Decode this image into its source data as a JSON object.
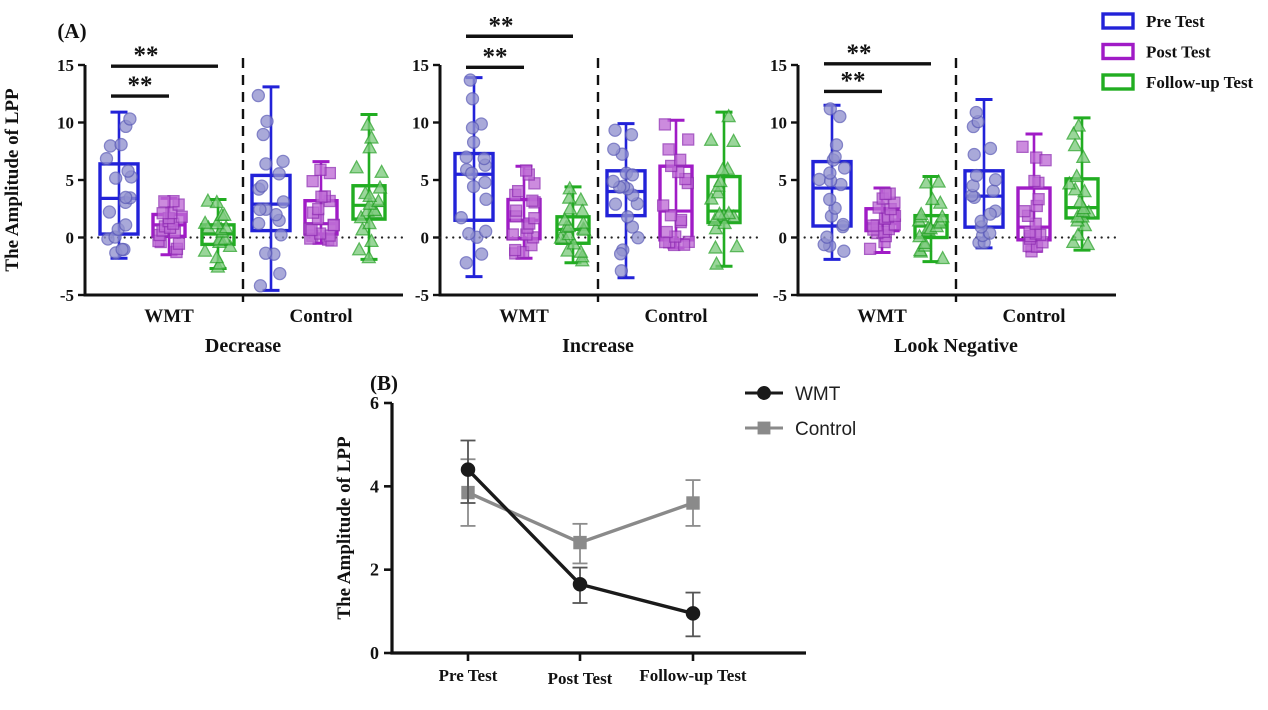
{
  "figure": {
    "background": "#ffffff",
    "axis_color": "#111111",
    "points_per_box": 19
  },
  "chart_data": [
    {
      "type": "boxplot-panels",
      "panel_label": "(A)",
      "ylabel": "The Amplitude of LPP",
      "ylim": [
        -5,
        15
      ],
      "yticks": [
        -5,
        0,
        5,
        10,
        15
      ],
      "zero_reference_line": 0,
      "grid": false,
      "groups": [
        "WMT",
        "Control"
      ],
      "legend_position": "top-right",
      "legend": [
        {
          "label": "Pre Test",
          "color": "#2222D8",
          "marker": "circle",
          "point_fill": "#9292CF",
          "point_stroke": "#5E5EB8"
        },
        {
          "label": "Post Test",
          "color": "#A01BC6",
          "marker": "square",
          "point_fill": "#BE6BD6",
          "point_stroke": "#9230B5"
        },
        {
          "label": "Follow-up Test",
          "color": "#21AD21",
          "marker": "triangle",
          "point_fill": "#7ECB7E",
          "point_stroke": "#2BA42B"
        }
      ],
      "panels": [
        {
          "title": "Decrease",
          "boxes": [
            {
              "group": "WMT",
              "test": "Pre Test",
              "lo": -1.8,
              "q1": 0.3,
              "med": 3.4,
              "q3": 6.4,
              "hi": 10.9
            },
            {
              "group": "WMT",
              "test": "Post Test",
              "lo": -1.5,
              "q1": 0.1,
              "med": 1.1,
              "q3": 2.0,
              "hi": 3.4
            },
            {
              "group": "WMT",
              "test": "Follow-up Test",
              "lo": -2.7,
              "q1": -0.6,
              "med": 0.3,
              "q3": 1.1,
              "hi": 3.3
            },
            {
              "group": "Control",
              "test": "Pre Test",
              "lo": -4.6,
              "q1": 0.6,
              "med": 2.9,
              "q3": 5.4,
              "hi": 13.1
            },
            {
              "group": "Control",
              "test": "Post Test",
              "lo": -0.5,
              "q1": 0.3,
              "med": 1.2,
              "q3": 3.2,
              "hi": 6.6
            },
            {
              "group": "Control",
              "test": "Follow-up Test",
              "lo": -1.9,
              "q1": 1.6,
              "med": 2.8,
              "q3": 4.5,
              "hi": 10.7
            }
          ],
          "sig_bars": [
            {
              "from_test": 0,
              "to_test": 1,
              "y": 12.3,
              "label": "**"
            },
            {
              "from_test": 0,
              "to_test": 2,
              "y": 14.9,
              "label": "**"
            }
          ]
        },
        {
          "title": "Increase",
          "boxes": [
            {
              "group": "WMT",
              "test": "Pre Test",
              "lo": -3.4,
              "q1": 1.5,
              "med": 5.5,
              "q3": 7.3,
              "hi": 13.9
            },
            {
              "group": "WMT",
              "test": "Post Test",
              "lo": -1.8,
              "q1": -0.1,
              "med": 1.5,
              "q3": 3.3,
              "hi": 6.2
            },
            {
              "group": "WMT",
              "test": "Follow-up Test",
              "lo": -2.2,
              "q1": -0.5,
              "med": 0.7,
              "q3": 1.8,
              "hi": 4.4
            },
            {
              "group": "Control",
              "test": "Pre Test",
              "lo": -3.5,
              "q1": 1.9,
              "med": 4.0,
              "q3": 5.8,
              "hi": 9.9
            },
            {
              "group": "Control",
              "test": "Post Test",
              "lo": -0.9,
              "q1": -0.2,
              "med": 2.3,
              "q3": 6.2,
              "hi": 10.2
            },
            {
              "group": "Control",
              "test": "Follow-up Test",
              "lo": -2.5,
              "q1": 1.3,
              "med": 2.3,
              "q3": 5.3,
              "hi": 10.9
            }
          ],
          "sig_bars": [
            {
              "from_test": 0,
              "to_test": 1,
              "y": 14.8,
              "label": "**"
            },
            {
              "from_test": 0,
              "to_test": 2,
              "y": 17.5,
              "label": "**"
            }
          ]
        },
        {
          "title": "Look Negative",
          "boxes": [
            {
              "group": "WMT",
              "test": "Pre Test",
              "lo": -1.9,
              "q1": 1.0,
              "med": 4.3,
              "q3": 6.6,
              "hi": 11.5
            },
            {
              "group": "WMT",
              "test": "Post Test",
              "lo": -1.3,
              "q1": 0.6,
              "med": 1.2,
              "q3": 2.5,
              "hi": 4.3
            },
            {
              "group": "WMT",
              "test": "Follow-up Test",
              "lo": -2.1,
              "q1": 0.0,
              "med": 1.0,
              "q3": 1.9,
              "hi": 5.3
            },
            {
              "group": "Control",
              "test": "Pre Test",
              "lo": -0.9,
              "q1": 0.9,
              "med": 3.6,
              "q3": 5.8,
              "hi": 12.0
            },
            {
              "group": "Control",
              "test": "Post Test",
              "lo": -1.2,
              "q1": -0.2,
              "med": 0.9,
              "q3": 4.3,
              "hi": 9.0
            },
            {
              "group": "Control",
              "test": "Follow-up Test",
              "lo": -1.1,
              "q1": 1.7,
              "med": 2.6,
              "q3": 5.1,
              "hi": 10.4
            }
          ],
          "sig_bars": [
            {
              "from_test": 0,
              "to_test": 1,
              "y": 12.7,
              "label": "**"
            },
            {
              "from_test": 0,
              "to_test": 2,
              "y": 15.1,
              "label": "**"
            }
          ]
        }
      ]
    },
    {
      "type": "line",
      "panel_label": "(B)",
      "ylabel": "The Amplitude of LPP",
      "ylim": [
        0,
        6
      ],
      "yticks": [
        0,
        2,
        4,
        6
      ],
      "categories": [
        "Pre Test",
        "Post Test",
        "Follow-up Test"
      ],
      "legend_position": "right-top",
      "series": [
        {
          "name": "WMT",
          "color": "#1a1a1a",
          "marker": "circle",
          "error_color": "#555555",
          "values": [
            4.4,
            1.65,
            0.95
          ],
          "err_low": [
            3.6,
            1.2,
            0.4
          ],
          "err_high": [
            5.1,
            2.05,
            1.45
          ]
        },
        {
          "name": "Control",
          "color": "#8a8a8a",
          "marker": "square",
          "error_color": "#8c8c8c",
          "values": [
            3.85,
            2.65,
            3.6
          ],
          "err_low": [
            3.05,
            2.15,
            3.05
          ],
          "err_high": [
            4.65,
            3.1,
            4.15
          ]
        }
      ]
    }
  ]
}
